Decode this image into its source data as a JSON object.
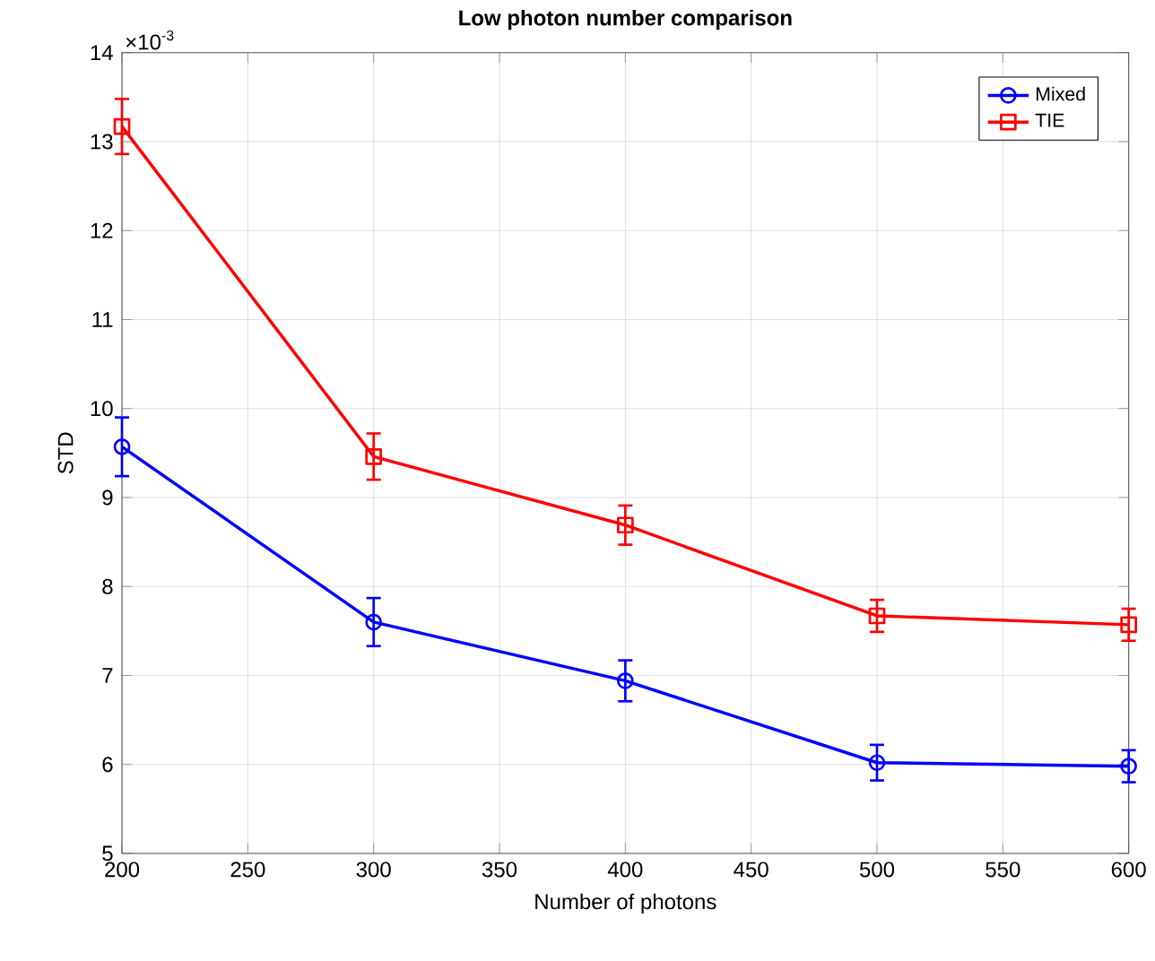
{
  "chart_data": {
    "type": "line",
    "title": "Low photon number comparison",
    "xlabel": "Number of photons",
    "ylabel": "STD",
    "annotations": [
      "×10$^{-3}$"
    ],
    "x": [
      200,
      300,
      400,
      500,
      600
    ],
    "series": [
      {
        "name": "Mixed",
        "color": "#0000ff",
        "marker": "circle",
        "values": [
          9.57,
          7.6,
          6.94,
          6.02,
          5.98
        ],
        "errors": [
          0.33,
          0.27,
          0.23,
          0.2,
          0.18
        ]
      },
      {
        "name": "TIE",
        "color": "#ff0000",
        "marker": "square",
        "values": [
          13.17,
          9.46,
          8.69,
          7.67,
          7.57
        ],
        "errors": [
          0.31,
          0.26,
          0.22,
          0.18,
          0.18
        ]
      }
    ],
    "xlim": [
      200,
      600
    ],
    "xticks": [
      200,
      250,
      300,
      350,
      400,
      450,
      500,
      550,
      600
    ],
    "ylim": [
      5,
      14
    ],
    "yticks": [
      5,
      6,
      7,
      8,
      9,
      10,
      11,
      12,
      13,
      14
    ],
    "grid": true,
    "legend": "top right",
    "line_style": "solid"
  }
}
